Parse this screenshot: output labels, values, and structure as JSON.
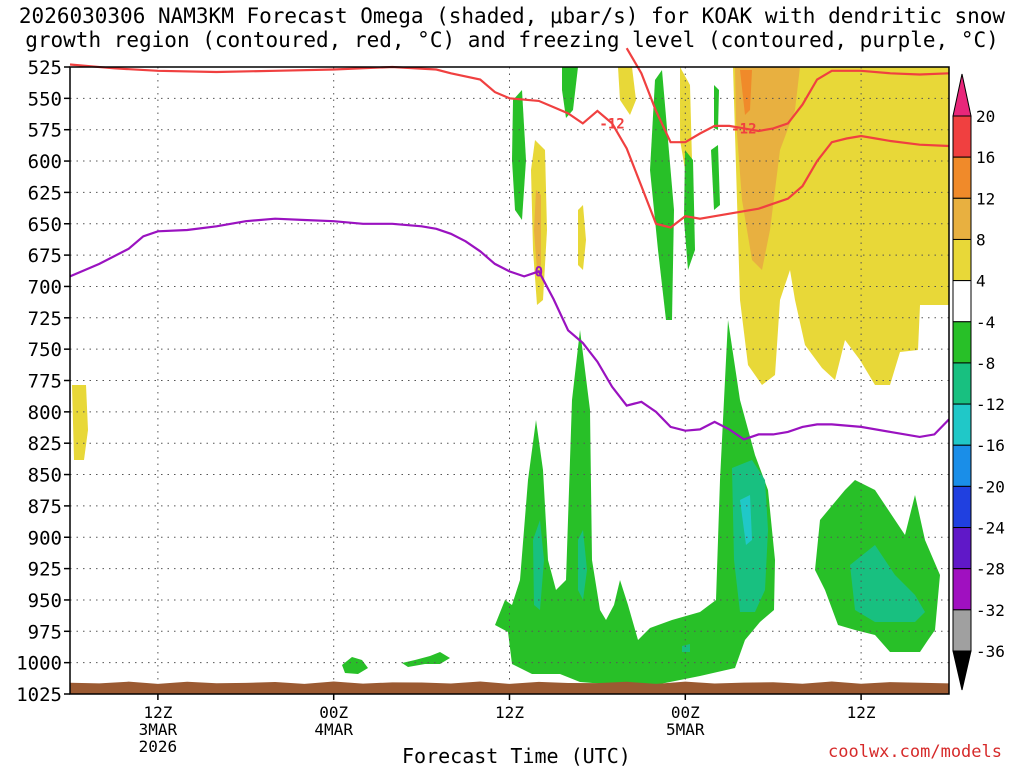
{
  "title_line1": "2026030306 NAM3KM Forecast Omega (shaded, μbar/s) for KOAK with dendritic snow",
  "title_line2": "growth region (contoured, red, °C) and freezing level (contoured, purple, °C)",
  "credit": "coolwx.com/models",
  "chart_data": {
    "type": "heatmap",
    "xlabel": "Forecast Time (UTC)",
    "x_ticks": [
      {
        "hour": 6,
        "lines": [
          "12Z",
          "3MAR",
          "2026"
        ]
      },
      {
        "hour": 18,
        "lines": [
          "00Z",
          "4MAR"
        ]
      },
      {
        "hour": 30,
        "lines": [
          "12Z"
        ]
      },
      {
        "hour": 42,
        "lines": [
          "00Z",
          "5MAR"
        ]
      },
      {
        "hour": 54,
        "lines": [
          "12Z"
        ]
      }
    ],
    "xlim": [
      0,
      60
    ],
    "y_ticks": [
      525,
      550,
      575,
      600,
      625,
      650,
      675,
      700,
      725,
      750,
      775,
      800,
      825,
      850,
      875,
      900,
      925,
      950,
      975,
      1000,
      1025
    ],
    "ylim": [
      525,
      1025
    ],
    "grid": true,
    "colorbar": {
      "labels": [
        "20",
        "16",
        "12",
        "8",
        "4",
        "-4",
        "-8",
        "-12",
        "-16",
        "-20",
        "-24",
        "-28",
        "-32",
        "-36"
      ],
      "colors": [
        "#e8267a",
        "#f04040",
        "#f08a2a",
        "#e8b040",
        "#e8d838",
        "#ffffff",
        "#28c028",
        "#18c080",
        "#20c8c8",
        "#1a8ee8",
        "#2040e0",
        "#6018c8",
        "#a010c0",
        "#a0a0a0"
      ]
    },
    "contours": [
      {
        "label": "0",
        "color": "#9a12c0",
        "points": [
          [
            0,
            692
          ],
          [
            2,
            682
          ],
          [
            4,
            670
          ],
          [
            5,
            660
          ],
          [
            6,
            656
          ],
          [
            8,
            655
          ],
          [
            10,
            652
          ],
          [
            12,
            648
          ],
          [
            14,
            646
          ],
          [
            16,
            647
          ],
          [
            18,
            648
          ],
          [
            20,
            650
          ],
          [
            22,
            650
          ],
          [
            24,
            652
          ],
          [
            25,
            654
          ],
          [
            26,
            658
          ],
          [
            27,
            664
          ],
          [
            28,
            672
          ],
          [
            29,
            682
          ],
          [
            30,
            688
          ],
          [
            31,
            692
          ],
          [
            32,
            688
          ],
          [
            33,
            710
          ],
          [
            34,
            735
          ],
          [
            35,
            745
          ],
          [
            36,
            760
          ],
          [
            37,
            780
          ],
          [
            38,
            795
          ],
          [
            39,
            792
          ],
          [
            40,
            800
          ],
          [
            41,
            812
          ],
          [
            42,
            815
          ],
          [
            43,
            814
          ],
          [
            44,
            808
          ],
          [
            45,
            814
          ],
          [
            46,
            822
          ],
          [
            47,
            818
          ],
          [
            48,
            818
          ],
          [
            49,
            816
          ],
          [
            50,
            812
          ],
          [
            51,
            810
          ],
          [
            52,
            810
          ],
          [
            54,
            812
          ],
          [
            56,
            816
          ],
          [
            58,
            820
          ],
          [
            59,
            818
          ],
          [
            60,
            806
          ]
        ]
      },
      {
        "label": "-12",
        "color": "#f04040",
        "points": [
          [
            0,
            523
          ],
          [
            3,
            526
          ],
          [
            6,
            528
          ],
          [
            10,
            529
          ],
          [
            14,
            528
          ],
          [
            18,
            527
          ],
          [
            22,
            525
          ],
          [
            25,
            527
          ],
          [
            26,
            530
          ],
          [
            28,
            535
          ],
          [
            29,
            545
          ],
          [
            30,
            550
          ],
          [
            32,
            552
          ],
          [
            33,
            557
          ],
          [
            34,
            562
          ],
          [
            35,
            570
          ],
          [
            36,
            560
          ],
          [
            37,
            570
          ],
          [
            38,
            590
          ],
          [
            39,
            620
          ],
          [
            40,
            650
          ],
          [
            41,
            653
          ],
          [
            42,
            644
          ],
          [
            43,
            646
          ],
          [
            44,
            644
          ],
          [
            45,
            642
          ],
          [
            46,
            640
          ],
          [
            47,
            638
          ],
          [
            48,
            634
          ],
          [
            49,
            630
          ],
          [
            50,
            620
          ],
          [
            51,
            600
          ],
          [
            52,
            585
          ],
          [
            53,
            582
          ],
          [
            54,
            580
          ],
          [
            55,
            582
          ],
          [
            56,
            584
          ],
          [
            58,
            587
          ],
          [
            60,
            588
          ]
        ]
      },
      {
        "label": "-12",
        "color": "#f04040",
        "points": [
          [
            38,
            510
          ],
          [
            39,
            530
          ],
          [
            40,
            560
          ],
          [
            41,
            585
          ],
          [
            42,
            585
          ],
          [
            43,
            578
          ],
          [
            44,
            572
          ],
          [
            45,
            572
          ],
          [
            46,
            574
          ],
          [
            47,
            576
          ],
          [
            48,
            574
          ],
          [
            49,
            570
          ],
          [
            50,
            555
          ],
          [
            51,
            535
          ],
          [
            52,
            528
          ],
          [
            54,
            528
          ],
          [
            56,
            530
          ],
          [
            58,
            531
          ],
          [
            60,
            530
          ]
        ]
      }
    ],
    "ground_level": 1016
  }
}
